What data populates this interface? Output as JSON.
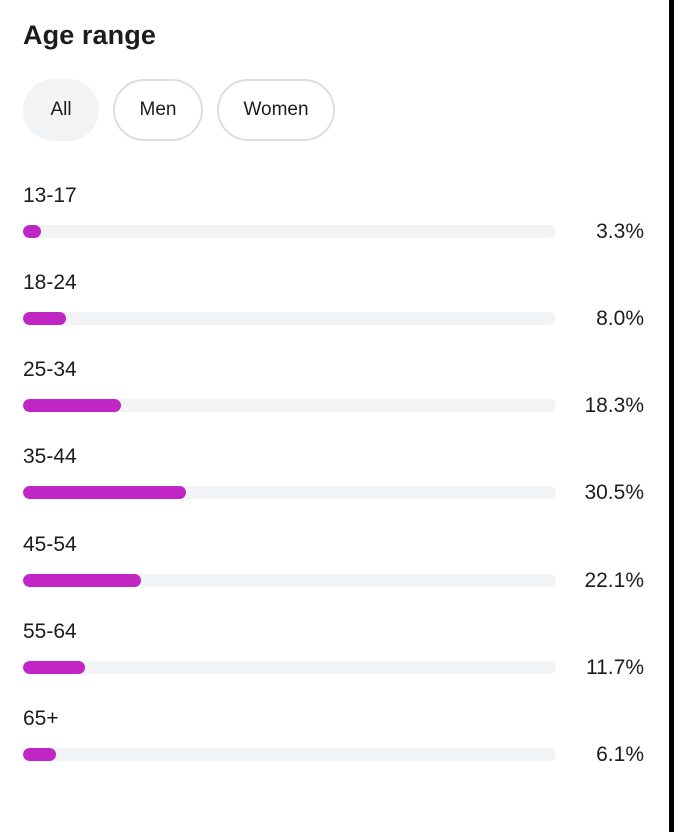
{
  "title": "Age range",
  "filters": [
    {
      "label": "All",
      "selected": true
    },
    {
      "label": "Men",
      "selected": false
    },
    {
      "label": "Women",
      "selected": false
    }
  ],
  "accent_color": "#c026c3",
  "track_color": "#f2f3f5",
  "rows": [
    {
      "label": "13-17",
      "percent_text": "3.3%",
      "value": 3.3
    },
    {
      "label": "18-24",
      "percent_text": "8.0%",
      "value": 8.0
    },
    {
      "label": "25-34",
      "percent_text": "18.3%",
      "value": 18.3
    },
    {
      "label": "35-44",
      "percent_text": "30.5%",
      "value": 30.5
    },
    {
      "label": "45-54",
      "percent_text": "22.1%",
      "value": 22.1
    },
    {
      "label": "55-64",
      "percent_text": "11.7%",
      "value": 11.7
    },
    {
      "label": "65+",
      "percent_text": "6.1%",
      "value": 6.1
    }
  ]
}
